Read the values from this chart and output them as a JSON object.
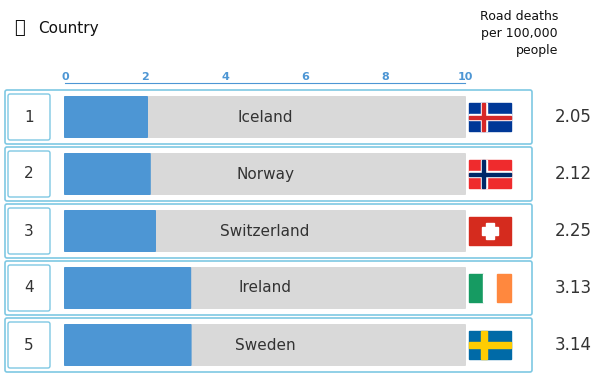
{
  "countries": [
    "Iceland",
    "Norway",
    "Switzerland",
    "Ireland",
    "Sweden"
  ],
  "values": [
    2.05,
    2.12,
    2.25,
    3.13,
    3.14
  ],
  "ranks": [
    1,
    2,
    3,
    4,
    5
  ],
  "bar_max": 10,
  "bar_color": "#4d96d4",
  "bar_bg_color": "#d9d9d9",
  "tick_color": "#4d96d4",
  "tick_labels": [
    "0",
    "2",
    "4",
    "6",
    "8",
    "10"
  ],
  "tick_positions": [
    0,
    2,
    4,
    6,
    8,
    10
  ],
  "title_right": "Road deaths\nper 100,000\npeople",
  "title_left": "Country",
  "bg_color": "#ffffff",
  "box_border_color": "#7ec8e3",
  "value_fontsize": 12,
  "country_fontsize": 11,
  "rank_fontsize": 11
}
